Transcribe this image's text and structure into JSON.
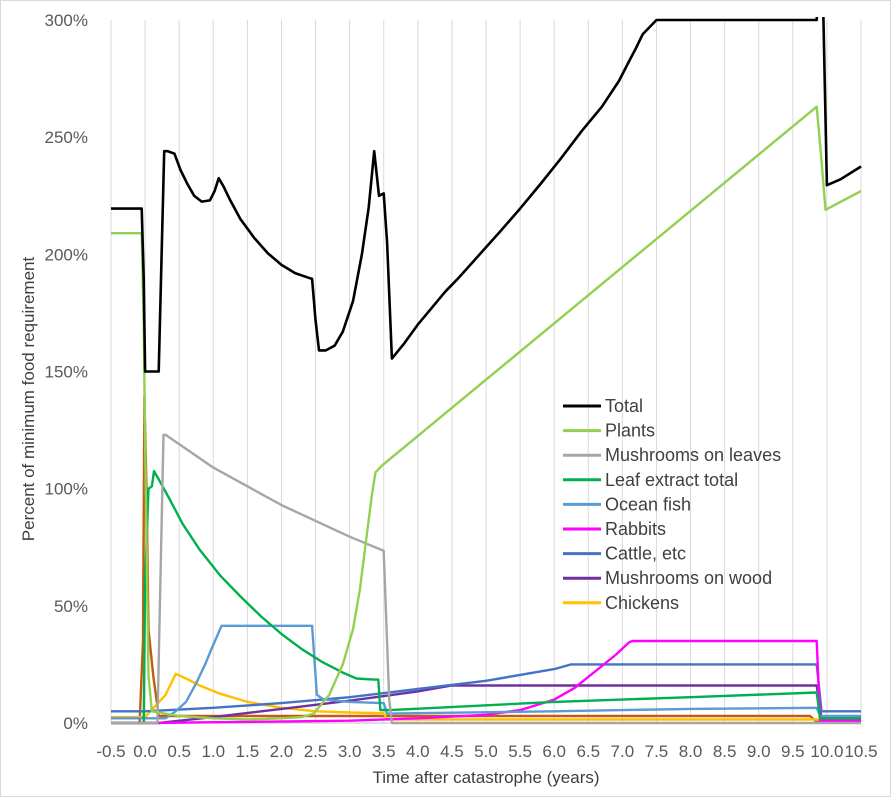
{
  "chart_data": {
    "type": "line",
    "title": "",
    "xlabel": "Time after catastrophe (years)",
    "ylabel": "Percent of minimum food requirement",
    "xlim": [
      -0.5,
      10.5
    ],
    "ylim": [
      0,
      300
    ],
    "x_ticks": [
      "-0.5",
      "0.0",
      "0.5",
      "1.0",
      "1.5",
      "2.0",
      "2.5",
      "3.0",
      "3.5",
      "4.0",
      "4.5",
      "5.0",
      "5.5",
      "6.0",
      "6.5",
      "7.0",
      "7.5",
      "8.0",
      "8.5",
      "9.0",
      "9.5",
      "10.0",
      "10.5"
    ],
    "y_ticks": [
      "0%",
      "50%",
      "100%",
      "150%",
      "200%",
      "250%",
      "300%"
    ],
    "grid": "vertical",
    "legend_position": "right-center",
    "series": [
      {
        "name": "Total",
        "color": "#000000",
        "points": [
          [
            -0.5,
            219.5
          ],
          [
            -0.05,
            219.5
          ],
          [
            -0.02,
            190
          ],
          [
            0.0,
            150
          ],
          [
            0.2,
            150
          ],
          [
            0.28,
            244
          ],
          [
            0.33,
            244
          ],
          [
            0.43,
            243
          ],
          [
            0.52,
            236
          ],
          [
            0.62,
            230
          ],
          [
            0.72,
            225
          ],
          [
            0.83,
            222.5
          ],
          [
            0.95,
            223
          ],
          [
            1.02,
            227
          ],
          [
            1.08,
            232.5
          ],
          [
            1.15,
            229
          ],
          [
            1.25,
            223
          ],
          [
            1.4,
            215
          ],
          [
            1.6,
            207
          ],
          [
            1.8,
            200.5
          ],
          [
            2.0,
            195.5
          ],
          [
            2.2,
            192
          ],
          [
            2.4,
            190
          ],
          [
            2.45,
            189.5
          ],
          [
            2.5,
            172
          ],
          [
            2.55,
            159
          ],
          [
            2.65,
            159
          ],
          [
            2.78,
            161
          ],
          [
            2.9,
            167
          ],
          [
            3.05,
            180
          ],
          [
            3.18,
            200
          ],
          [
            3.28,
            220
          ],
          [
            3.36,
            244
          ],
          [
            3.43,
            225
          ],
          [
            3.5,
            226
          ],
          [
            3.55,
            205
          ],
          [
            3.62,
            155.5
          ],
          [
            3.8,
            162
          ],
          [
            4.0,
            170
          ],
          [
            4.2,
            177
          ],
          [
            4.4,
            184
          ],
          [
            4.6,
            190
          ],
          [
            4.8,
            196.5
          ],
          [
            5.0,
            203
          ],
          [
            5.2,
            209.5
          ],
          [
            5.5,
            219.5
          ],
          [
            5.8,
            230
          ],
          [
            6.1,
            241
          ],
          [
            6.4,
            252.5
          ],
          [
            6.7,
            263
          ],
          [
            6.95,
            274
          ],
          [
            7.1,
            282.5
          ],
          [
            7.2,
            288
          ],
          [
            7.3,
            294
          ],
          [
            7.5,
            300
          ],
          [
            9.85,
            300
          ],
          [
            9.92,
            340
          ],
          [
            10.0,
            229.5
          ],
          [
            10.2,
            232
          ],
          [
            10.5,
            237.5
          ]
        ]
      },
      {
        "name": "Plants",
        "color": "#92d050",
        "points": [
          [
            -0.5,
            209
          ],
          [
            -0.05,
            209
          ],
          [
            -0.02,
            170
          ],
          [
            0.0,
            120
          ],
          [
            0.05,
            20
          ],
          [
            0.1,
            5
          ],
          [
            0.5,
            3
          ],
          [
            1.0,
            2
          ],
          [
            1.5,
            1.5
          ],
          [
            2.0,
            2
          ],
          [
            2.3,
            2.5
          ],
          [
            2.47,
            4
          ],
          [
            2.5,
            5
          ],
          [
            2.7,
            12
          ],
          [
            2.9,
            25
          ],
          [
            3.05,
            40
          ],
          [
            3.15,
            57
          ],
          [
            3.25,
            80
          ],
          [
            3.33,
            98
          ],
          [
            3.38,
            107
          ],
          [
            3.48,
            110
          ],
          [
            9.85,
            263
          ],
          [
            9.92,
            240
          ],
          [
            9.98,
            219
          ],
          [
            10.5,
            227
          ]
        ]
      },
      {
        "name": "Mushrooms on leaves",
        "color": "#a6a6a6",
        "points": [
          [
            -0.5,
            0
          ],
          [
            0.18,
            0
          ],
          [
            0.27,
            123
          ],
          [
            0.3,
            123
          ],
          [
            1.0,
            109
          ],
          [
            2.0,
            93
          ],
          [
            3.0,
            79.5
          ],
          [
            3.5,
            73.5
          ],
          [
            3.58,
            10
          ],
          [
            3.62,
            0
          ],
          [
            10.5,
            0
          ]
        ]
      },
      {
        "name": "Leaf extract total",
        "color": "#00b050",
        "points": [
          [
            -0.5,
            0
          ],
          [
            -0.02,
            0
          ],
          [
            0.0,
            60
          ],
          [
            0.05,
            100
          ],
          [
            0.1,
            101
          ],
          [
            0.13,
            107.5
          ],
          [
            0.2,
            104
          ],
          [
            0.35,
            96
          ],
          [
            0.55,
            85
          ],
          [
            0.8,
            74
          ],
          [
            1.1,
            63
          ],
          [
            1.4,
            54
          ],
          [
            1.7,
            45.5
          ],
          [
            2.0,
            38
          ],
          [
            2.3,
            31.5
          ],
          [
            2.6,
            26
          ],
          [
            2.9,
            21.5
          ],
          [
            3.1,
            19
          ],
          [
            3.35,
            18.5
          ],
          [
            3.42,
            18.5
          ],
          [
            3.45,
            5.5
          ],
          [
            3.6,
            5.5
          ],
          [
            6.0,
            9
          ],
          [
            8.0,
            11
          ],
          [
            9.85,
            13
          ],
          [
            9.9,
            2
          ],
          [
            10.5,
            2
          ]
        ]
      },
      {
        "name": "Ocean fish",
        "color": "#5b9bd5",
        "points": [
          [
            -0.5,
            2
          ],
          [
            0.3,
            2
          ],
          [
            0.45,
            5
          ],
          [
            0.6,
            9
          ],
          [
            0.75,
            17
          ],
          [
            0.88,
            25
          ],
          [
            0.98,
            32
          ],
          [
            1.07,
            38
          ],
          [
            1.12,
            41.5
          ],
          [
            2.45,
            41.5
          ],
          [
            2.52,
            12
          ],
          [
            2.62,
            10
          ],
          [
            3.0,
            9
          ],
          [
            3.5,
            8.5
          ],
          [
            3.55,
            4
          ],
          [
            6.0,
            5
          ],
          [
            8.0,
            6
          ],
          [
            9.85,
            6.5
          ],
          [
            9.9,
            3
          ],
          [
            10.5,
            3
          ]
        ]
      },
      {
        "name": "Rabbits",
        "color": "#ff00ff",
        "points": [
          [
            -0.5,
            0
          ],
          [
            0.0,
            0
          ],
          [
            3.0,
            1
          ],
          [
            4.0,
            2
          ],
          [
            5.0,
            3.5
          ],
          [
            5.5,
            5.5
          ],
          [
            6.0,
            10
          ],
          [
            6.3,
            15
          ],
          [
            6.6,
            22
          ],
          [
            6.9,
            29
          ],
          [
            7.1,
            34.5
          ],
          [
            7.15,
            35
          ],
          [
            9.85,
            35
          ],
          [
            9.9,
            1
          ],
          [
            10.5,
            1
          ]
        ]
      },
      {
        "name": "Cattle, etc",
        "color": "#4472c4",
        "points": [
          [
            -0.5,
            5
          ],
          [
            0.0,
            5
          ],
          [
            1.0,
            6.5
          ],
          [
            2.0,
            8.5
          ],
          [
            3.0,
            11
          ],
          [
            4.0,
            14.5
          ],
          [
            5.0,
            18
          ],
          [
            6.0,
            23
          ],
          [
            6.25,
            25
          ],
          [
            9.85,
            25
          ],
          [
            9.92,
            5
          ],
          [
            10.5,
            5
          ]
        ]
      },
      {
        "name": "Mushrooms on wood",
        "color": "#7030a0",
        "points": [
          [
            -0.5,
            0
          ],
          [
            0.2,
            0
          ],
          [
            1.0,
            2.5
          ],
          [
            2.0,
            6
          ],
          [
            3.0,
            9.5
          ],
          [
            4.0,
            13.5
          ],
          [
            4.5,
            16
          ],
          [
            9.85,
            16
          ],
          [
            9.92,
            2
          ],
          [
            10.5,
            2
          ]
        ]
      },
      {
        "name": "Chickens",
        "color": "#ffc000",
        "points": [
          [
            -0.5,
            2.5
          ],
          [
            0.0,
            2.5
          ],
          [
            0.3,
            12
          ],
          [
            0.45,
            21
          ],
          [
            0.6,
            19
          ],
          [
            0.8,
            16
          ],
          [
            1.1,
            12.5
          ],
          [
            1.5,
            9
          ],
          [
            2.0,
            6.5
          ],
          [
            2.5,
            5
          ],
          [
            3.0,
            4.5
          ],
          [
            3.5,
            4.2
          ],
          [
            3.55,
            1.5
          ],
          [
            10.5,
            1.5
          ]
        ]
      },
      {
        "name": "",
        "color": "#c55a11",
        "points": [
          [
            -0.5,
            0
          ],
          [
            -0.08,
            0
          ],
          [
            -0.03,
            35
          ],
          [
            -0.01,
            139.5
          ],
          [
            0.02,
            100
          ],
          [
            0.05,
            40
          ],
          [
            0.12,
            20
          ],
          [
            0.2,
            3
          ],
          [
            0.3,
            3
          ],
          [
            9.75,
            3
          ],
          [
            9.85,
            0.5
          ],
          [
            10.5,
            0.5
          ]
        ]
      }
    ]
  }
}
